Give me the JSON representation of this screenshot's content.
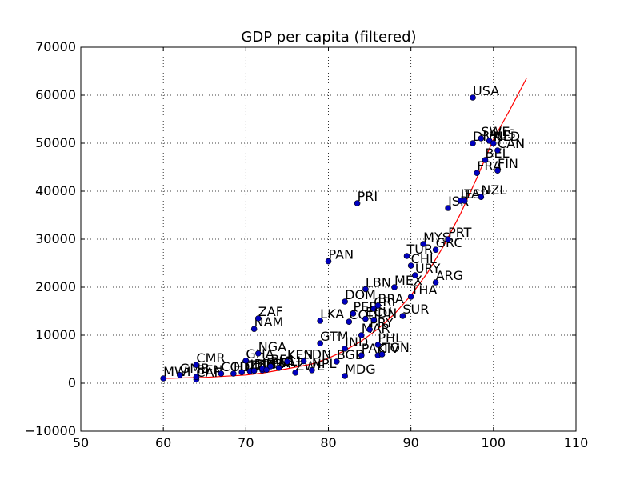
{
  "chart_data": {
    "type": "scatter",
    "title": "GDP per capita (filtered)",
    "xlabel": "",
    "ylabel": "",
    "xlim": [
      50,
      110
    ],
    "ylim": [
      -10000,
      70000
    ],
    "xticks": [
      50,
      60,
      70,
      80,
      90,
      100,
      110
    ],
    "yticks": [
      -10000,
      0,
      10000,
      20000,
      30000,
      40000,
      50000,
      60000,
      70000
    ],
    "grid": true,
    "point_color": "#0000bf",
    "line_color": "#ff0000",
    "points": [
      {
        "x": 60.0,
        "y": 1000,
        "label": "MWI"
      },
      {
        "x": 62.0,
        "y": 1700,
        "label": "GMB"
      },
      {
        "x": 64.0,
        "y": 800,
        "label": "CAF"
      },
      {
        "x": 64.0,
        "y": 3800,
        "label": "CMR"
      },
      {
        "x": 64.0,
        "y": 1300,
        "label": "BEN"
      },
      {
        "x": 67.0,
        "y": 2000,
        "label": "COD"
      },
      {
        "x": 68.5,
        "y": 2000,
        "label": "HTI"
      },
      {
        "x": 69.5,
        "y": 2300,
        "label": "TZA"
      },
      {
        "x": 70.0,
        "y": 4700,
        "label": "GHA"
      },
      {
        "x": 70.5,
        "y": 2500,
        "label": "LBR"
      },
      {
        "x": 71.0,
        "y": 2600,
        "label": "BDI"
      },
      {
        "x": 71.0,
        "y": 11300,
        "label": "NAM"
      },
      {
        "x": 71.5,
        "y": 6200,
        "label": "NGA"
      },
      {
        "x": 71.5,
        "y": 13500,
        "label": "ZAF"
      },
      {
        "x": 72.0,
        "y": 2700,
        "label": "UGA"
      },
      {
        "x": 72.0,
        "y": 3000,
        "label": "SEN"
      },
      {
        "x": 72.5,
        "y": 2800,
        "label": "RWA"
      },
      {
        "x": 73.0,
        "y": 3500,
        "label": "BFA"
      },
      {
        "x": 74.0,
        "y": 3200,
        "label": "MLI"
      },
      {
        "x": 75.0,
        "y": 4500,
        "label": "KEN"
      },
      {
        "x": 76.0,
        "y": 2200,
        "label": "ZWE"
      },
      {
        "x": 77.0,
        "y": 4600,
        "label": "SDN"
      },
      {
        "x": 78.0,
        "y": 2700,
        "label": "NPL"
      },
      {
        "x": 79.0,
        "y": 8300,
        "label": "GTM"
      },
      {
        "x": 79.0,
        "y": 13000,
        "label": "LKA"
      },
      {
        "x": 80.0,
        "y": 25400,
        "label": "PAN"
      },
      {
        "x": 81.0,
        "y": 4500,
        "label": "BGD"
      },
      {
        "x": 82.0,
        "y": 1500,
        "label": "MDG"
      },
      {
        "x": 82.0,
        "y": 7200,
        "label": "IND"
      },
      {
        "x": 82.0,
        "y": 17000,
        "label": "DOM"
      },
      {
        "x": 82.5,
        "y": 12800,
        "label": "COL"
      },
      {
        "x": 83.0,
        "y": 14500,
        "label": "PER"
      },
      {
        "x": 83.5,
        "y": 37500,
        "label": "PRI"
      },
      {
        "x": 84.0,
        "y": 10000,
        "label": "MAR"
      },
      {
        "x": 84.0,
        "y": 5800,
        "label": "PAK"
      },
      {
        "x": 84.5,
        "y": 13400,
        "label": "ECU"
      },
      {
        "x": 84.5,
        "y": 19600,
        "label": "LBN"
      },
      {
        "x": 85.0,
        "y": 11200,
        "label": "PRY"
      },
      {
        "x": 85.5,
        "y": 15500,
        "label": "CRI"
      },
      {
        "x": 85.5,
        "y": 13200,
        "label": "IDN"
      },
      {
        "x": 86.0,
        "y": 16200,
        "label": "BRA"
      },
      {
        "x": 86.0,
        "y": 5800,
        "label": "CIV"
      },
      {
        "x": 86.0,
        "y": 8000,
        "label": "PHL"
      },
      {
        "x": 86.5,
        "y": 6000,
        "label": "TON"
      },
      {
        "x": 88.0,
        "y": 20000,
        "label": "MEX"
      },
      {
        "x": 89.0,
        "y": 14000,
        "label": "SUR"
      },
      {
        "x": 89.5,
        "y": 26500,
        "label": "TUR"
      },
      {
        "x": 90.0,
        "y": 24500,
        "label": "CHL"
      },
      {
        "x": 90.0,
        "y": 18000,
        "label": "THA"
      },
      {
        "x": 90.5,
        "y": 22500,
        "label": "URY"
      },
      {
        "x": 91.5,
        "y": 29000,
        "label": "MYS"
      },
      {
        "x": 93.0,
        "y": 21000,
        "label": "ARG"
      },
      {
        "x": 93.0,
        "y": 27800,
        "label": "GRC"
      },
      {
        "x": 94.5,
        "y": 30000,
        "label": "PRT"
      },
      {
        "x": 94.5,
        "y": 36500,
        "label": "ISR"
      },
      {
        "x": 96.0,
        "y": 38000,
        "label": "ITA"
      },
      {
        "x": 96.5,
        "y": 38000,
        "label": "ESP"
      },
      {
        "x": 97.5,
        "y": 50000,
        "label": "DNK"
      },
      {
        "x": 97.5,
        "y": 59500,
        "label": "USA"
      },
      {
        "x": 98.0,
        "y": 43800,
        "label": "FRA"
      },
      {
        "x": 98.5,
        "y": 51000,
        "label": "SWE"
      },
      {
        "x": 98.5,
        "y": 38800,
        "label": "NZL"
      },
      {
        "x": 99.0,
        "y": 46500,
        "label": "BEL"
      },
      {
        "x": 99.5,
        "y": 50500,
        "label": "AUS"
      },
      {
        "x": 100.0,
        "y": 50000,
        "label": "NLD"
      },
      {
        "x": 100.5,
        "y": 48500,
        "label": "CAN"
      },
      {
        "x": 100.5,
        "y": 44300,
        "label": "FIN"
      }
    ],
    "trend_line": {
      "x": [
        60,
        65,
        70,
        72,
        75,
        78,
        80,
        82,
        84,
        86,
        88,
        90,
        92,
        94,
        96,
        98,
        100,
        102,
        104
      ],
      "y": [
        1000,
        1200,
        1700,
        2100,
        3000,
        4000,
        5200,
        6800,
        8800,
        11300,
        14400,
        18300,
        23000,
        28700,
        35300,
        42800,
        50800,
        57000,
        63500
      ]
    }
  }
}
